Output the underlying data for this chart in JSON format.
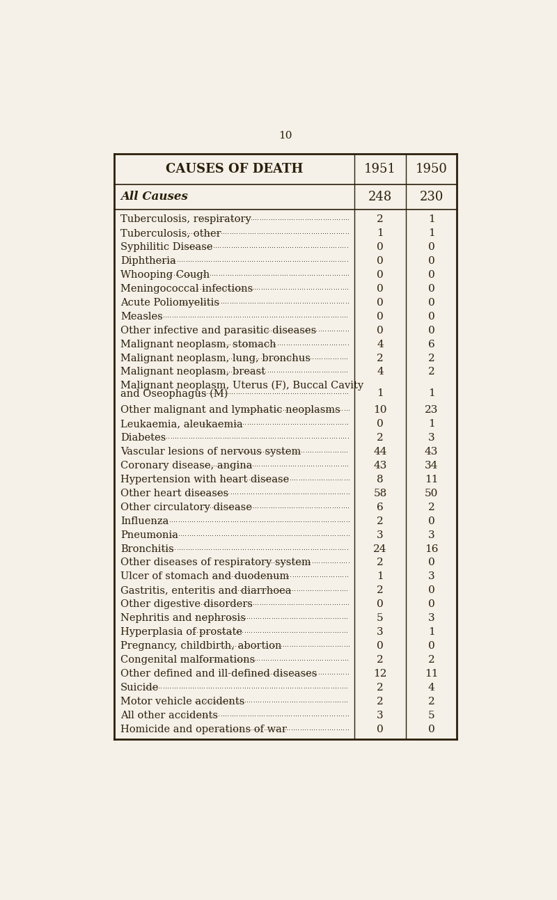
{
  "page_number": "10",
  "bg_color": "#f5f0e8",
  "header_col1": "CAUSES OF DEATH",
  "header_col2": "1951",
  "header_col3": "1950",
  "all_causes_label": "All Causes",
  "all_causes_1951": "248",
  "all_causes_1950": "230",
  "rows": [
    [
      "Tuberculosis, respiratory",
      "2",
      "1"
    ],
    [
      "Tuberculosis, other",
      "1",
      "1"
    ],
    [
      "Syphilitic Disease",
      "0",
      "0"
    ],
    [
      "Diphtheria",
      "0",
      "0"
    ],
    [
      "Whooping Cough",
      "0",
      "0"
    ],
    [
      "Meningococcal infections",
      "0",
      "0"
    ],
    [
      "Acute Poliomyelitis",
      "0",
      "0"
    ],
    [
      "Measles",
      "0",
      "0"
    ],
    [
      "Other infective and parasitic diseases",
      "0",
      "0"
    ],
    [
      "Malignant neoplasm, stomach",
      "4",
      "6"
    ],
    [
      "Malignant neoplasm, lung, bronchus",
      "2",
      "2"
    ],
    [
      "Malignant neoplasm, breast",
      "4",
      "2"
    ],
    [
      "Malignant neoplasm, Uterus (F), Buccal Cavity|    and Oseophagus (M)",
      "1",
      "1"
    ],
    [
      "Other malignant and lymphatic neoplasms",
      "10",
      "23"
    ],
    [
      "Leukaemia, aleukaemia",
      "0",
      "1"
    ],
    [
      "Diabetes",
      "2",
      "3"
    ],
    [
      "Vascular lesions of nervous system",
      "44",
      "43"
    ],
    [
      "Coronary disease, angina",
      "43",
      "34"
    ],
    [
      "Hypertension with heart disease",
      "8",
      "11"
    ],
    [
      "Other heart diseases",
      "58",
      "50"
    ],
    [
      "Other circulatory disease",
      "6",
      "2"
    ],
    [
      "Influenza",
      "2",
      "0"
    ],
    [
      "Pneumonia",
      "3",
      "3"
    ],
    [
      "Bronchitis",
      "24",
      "16"
    ],
    [
      "Other diseases of respiratory system",
      "2",
      "0"
    ],
    [
      "Ulcer of stomach and duodenum",
      "1",
      "3"
    ],
    [
      "Gastritis, enteritis and diarrhoea",
      "2",
      "0"
    ],
    [
      "Other digestive disorders",
      "0",
      "0"
    ],
    [
      "Nephritis and nephrosis",
      "5",
      "3"
    ],
    [
      "Hyperplasia of prostate",
      "3",
      "1"
    ],
    [
      "Pregnancy, childbirth, abortion",
      "0",
      "0"
    ],
    [
      "Congenital malformations",
      "2",
      "2"
    ],
    [
      "Other defined and ill-defined diseases",
      "12",
      "11"
    ],
    [
      "Suicide",
      "2",
      "4"
    ],
    [
      "Motor vehicle accidents",
      "2",
      "2"
    ],
    [
      "All other accidents",
      "3",
      "5"
    ],
    [
      "Homicide and operations of war",
      "0",
      "0"
    ]
  ],
  "font_color": "#2a1f0a",
  "line_color": "#2a1f0a"
}
